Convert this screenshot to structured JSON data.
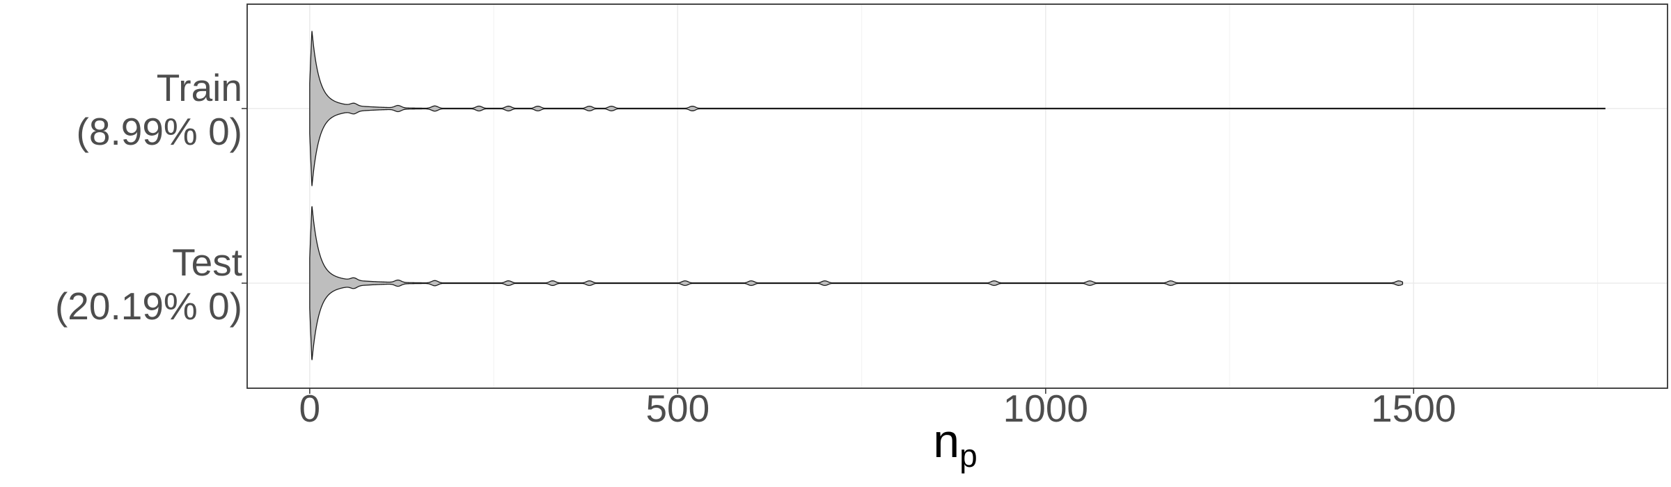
{
  "chart_data": {
    "type": "violin",
    "orientation": "horizontal",
    "title": "",
    "xlabel": "n",
    "xlabel_subscript": "p",
    "ylabel": "",
    "xlim": [
      -85,
      1845
    ],
    "x_ticks": [
      0,
      500,
      1000,
      1500
    ],
    "grid": true,
    "legend": "none",
    "fill_color": "#bebebe",
    "outline_color": "#1a1a1a",
    "series": [
      {
        "group_line1": "Train",
        "group_line2": "(8.99% 0)",
        "min": 0,
        "max": 1760,
        "mode": 3,
        "bumps": [
          60,
          120,
          170,
          230,
          270,
          310,
          380,
          410,
          520
        ]
      },
      {
        "group_line1": "Test",
        "group_line2": "(20.19% 0)",
        "min": 0,
        "max": 1485,
        "mode": 3,
        "bumps": [
          60,
          120,
          170,
          270,
          330,
          380,
          510,
          600,
          700,
          930,
          1060,
          1170,
          1480
        ]
      }
    ]
  }
}
